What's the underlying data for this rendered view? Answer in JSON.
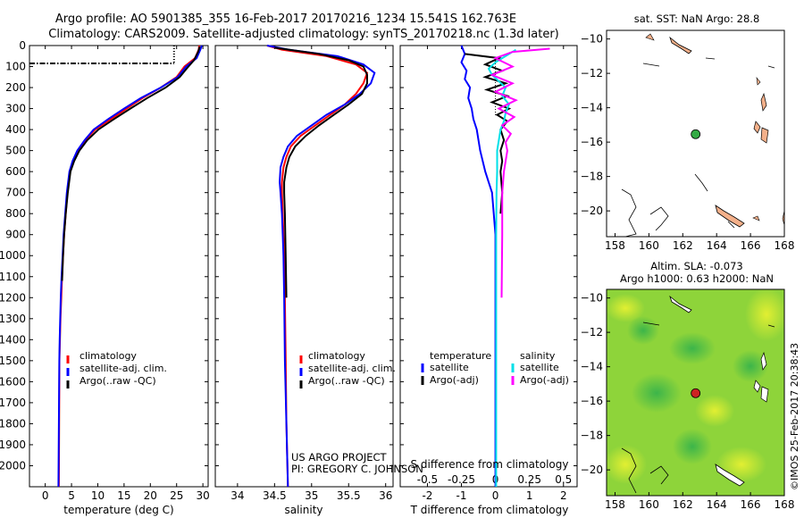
{
  "title_line1": "Argo profile: AO 5901385_355 16-Feb-2017 20170216_1234 15.541S 162.763E",
  "title_line2": "Climatology: CARS2009. Satellite-adjusted climatology: synTS_20170218.nc (1.3d later)",
  "credit_line1": "US ARGO PROJECT",
  "credit_line2": "PI: GREGORY C. JOHNSON",
  "imos_label": "©IMOS 25-Feb-2017 20:38:43",
  "colors": {
    "climatology": "#ff0000",
    "satellite": "#0000ff",
    "argo": "#000000",
    "salinity_satellite": "#00e0e8",
    "salinity_argo": "#ff00ff",
    "land": "#f4b08a",
    "map_sst_bg": "#ffffff"
  },
  "legend_profiles": [
    "climatology",
    "satellite-adj. clim.",
    "Argo(..raw -QC)"
  ],
  "legend_diff": {
    "temperature_header": "temperature",
    "salinity_header": "salinity",
    "items_left": [
      "satellite",
      "Argo(-adj)"
    ],
    "items_right": [
      "satellite",
      "Argo(-adj)"
    ]
  },
  "map_sst": {
    "title": "sat. SST: NaN Argo: 28.8"
  },
  "map_sla": {
    "title_line1": "Altim. SLA: -0.073",
    "title_line2": "Argo h1000: 0.63 h2000: NaN"
  },
  "chart_data": [
    {
      "type": "line",
      "name": "temperature-profile",
      "xlabel": "temperature (deg C)",
      "ylabel": "",
      "xlim": [
        -3,
        31
      ],
      "ylim": [
        2100,
        0
      ],
      "y_reversed": true,
      "xticks": [
        0,
        5,
        10,
        15,
        20,
        25,
        30
      ],
      "yticks": [
        0,
        100,
        200,
        300,
        400,
        500,
        600,
        700,
        800,
        900,
        1000,
        1100,
        1200,
        1300,
        1400,
        1500,
        1600,
        1700,
        1800,
        1900,
        2000
      ],
      "series": [
        {
          "name": "climatology",
          "color": "#ff0000",
          "x": [
            29.3,
            29.2,
            28.5,
            26.5,
            25.0,
            22.0,
            18.5,
            15.5,
            12.5,
            9.5,
            7.6,
            6.2,
            5.3,
            4.7,
            4.2,
            3.9,
            3.6,
            3.4,
            3.2,
            3.05,
            2.9,
            2.8,
            2.7,
            2.65,
            2.6
          ],
          "y": [
            0,
            20,
            60,
            100,
            150,
            200,
            250,
            300,
            350,
            400,
            450,
            500,
            550,
            600,
            700,
            800,
            900,
            1000,
            1100,
            1200,
            1300,
            1400,
            1500,
            1800,
            2100
          ]
        },
        {
          "name": "satellite-adj. clim.",
          "color": "#0000ff",
          "x": [
            29.8,
            29.5,
            28.8,
            26.8,
            25.2,
            22.0,
            18.2,
            15.0,
            12.0,
            9.2,
            7.5,
            6.1,
            5.2,
            4.6,
            4.1,
            3.8,
            3.5,
            3.3,
            3.1,
            2.95,
            2.85,
            2.75,
            2.68,
            2.6,
            2.5
          ],
          "y": [
            0,
            20,
            60,
            100,
            150,
            200,
            250,
            300,
            350,
            400,
            450,
            500,
            550,
            600,
            700,
            800,
            900,
            1000,
            1100,
            1200,
            1300,
            1400,
            1500,
            1800,
            2100
          ]
        },
        {
          "name": "Argo(..raw -QC)",
          "color": "#000000",
          "x": [
            29.4,
            29.1,
            28.3,
            26.9,
            25.6,
            22.9,
            19.4,
            16.2,
            13.1,
            10.1,
            8.0,
            6.5,
            5.5,
            4.8,
            4.3,
            3.9,
            3.6,
            3.4,
            3.2
          ],
          "y": [
            5,
            30,
            70,
            110,
            150,
            200,
            250,
            300,
            350,
            400,
            450,
            500,
            550,
            600,
            700,
            800,
            900,
            1000,
            1120
          ]
        },
        {
          "name": "mixed-layer marker",
          "color": "#000000",
          "style": "dashdot",
          "x": [
            -3,
            24.5
          ],
          "y": [
            85,
            85
          ]
        },
        {
          "name": "surface reference",
          "color": "#000000",
          "style": "dotted",
          "x": [
            24.5,
            24.5
          ],
          "y": [
            0,
            85
          ]
        }
      ]
    },
    {
      "type": "line",
      "name": "salinity-profile",
      "xlabel": "salinity",
      "ylabel": "",
      "xlim": [
        33.7,
        36.1
      ],
      "ylim": [
        2100,
        0
      ],
      "y_reversed": true,
      "xticks": [
        34,
        34.5,
        35,
        35.5,
        36
      ],
      "xtick_labels": [
        "34",
        "34.5",
        "35",
        "35.5",
        "36"
      ],
      "series": [
        {
          "name": "climatology",
          "color": "#ff0000",
          "x": [
            34.4,
            34.6,
            35.2,
            35.6,
            35.75,
            35.7,
            35.6,
            35.45,
            35.25,
            35.05,
            34.85,
            34.72,
            34.66,
            34.62,
            34.6,
            34.6,
            34.61,
            34.62,
            34.63,
            34.64,
            34.65,
            34.66,
            34.68
          ],
          "y": [
            0,
            20,
            50,
            90,
            130,
            180,
            230,
            280,
            330,
            380,
            430,
            480,
            530,
            580,
            650,
            700,
            800,
            900,
            1000,
            1200,
            1500,
            1800,
            2100
          ]
        },
        {
          "name": "satellite-adj. clim.",
          "color": "#0000ff",
          "x": [
            34.4,
            34.7,
            35.35,
            35.7,
            35.85,
            35.8,
            35.65,
            35.45,
            35.2,
            35.0,
            34.8,
            34.68,
            34.62,
            34.58,
            34.57,
            34.58,
            34.6,
            34.61,
            34.62,
            34.63,
            34.64,
            34.66,
            34.68
          ],
          "y": [
            0,
            20,
            50,
            90,
            130,
            180,
            230,
            280,
            330,
            380,
            430,
            480,
            530,
            580,
            650,
            700,
            800,
            900,
            1000,
            1200,
            1500,
            1800,
            2100
          ]
        },
        {
          "name": "Argo(..raw -QC)",
          "color": "#000000",
          "x": [
            34.5,
            35.1,
            35.5,
            35.7,
            35.75,
            35.75,
            35.68,
            35.5,
            35.3,
            35.1,
            34.92,
            34.78,
            34.7,
            34.66,
            34.63,
            34.63,
            34.64,
            34.65,
            34.66
          ],
          "y": [
            10,
            40,
            70,
            100,
            140,
            180,
            230,
            280,
            330,
            380,
            430,
            480,
            530,
            580,
            650,
            700,
            800,
            1000,
            1200
          ]
        }
      ]
    },
    {
      "type": "line",
      "name": "difference-from-climatology",
      "xlabel": "T difference from climatology",
      "xlabel_top": "S difference from climatology",
      "xlim": [
        -2.8,
        2.4
      ],
      "ylim": [
        2100,
        0
      ],
      "y_reversed": true,
      "xticks": [
        -2,
        -1,
        0,
        1,
        2
      ],
      "xticks_salinity": [
        -0.5,
        -0.25,
        0,
        0.25,
        0.5
      ],
      "series": [
        {
          "name": "temperature satellite",
          "color": "#0000ff",
          "x": [
            -1.0,
            -0.9,
            -1.0,
            -0.85,
            -0.9,
            -0.75,
            -0.8,
            -0.7,
            -0.65,
            -0.55,
            -0.45,
            -0.3,
            -0.2,
            -0.1,
            -0.05,
            0.0,
            0.0,
            0.0
          ],
          "y": [
            0,
            40,
            80,
            120,
            160,
            200,
            250,
            300,
            350,
            400,
            500,
            600,
            650,
            700,
            800,
            900,
            1200,
            2100
          ]
        },
        {
          "name": "temperature Argo(-adj)",
          "color": "#000000",
          "x": [
            -0.9,
            0.1,
            -0.3,
            0.2,
            -0.3,
            0.3,
            -0.25,
            0.35,
            -0.1,
            0.4,
            0.05,
            0.35,
            0.15,
            0.25,
            0.15,
            0.2,
            0.15,
            0.2,
            0.15
          ],
          "y": [
            40,
            60,
            90,
            120,
            150,
            180,
            210,
            240,
            270,
            300,
            330,
            360,
            400,
            450,
            500,
            550,
            600,
            700,
            800
          ]
        },
        {
          "name": "salinity satellite",
          "color": "#00e0e8",
          "x": [
            0.6,
            0.3,
            0.0,
            -0.2,
            -0.1,
            0.1,
            0.3,
            0.2,
            0.4,
            0.3,
            0.25,
            0.15,
            0.1,
            0.05,
            0.05,
            0.03,
            0.02,
            0.02,
            0.02
          ],
          "y": [
            20,
            50,
            80,
            110,
            140,
            170,
            200,
            240,
            280,
            320,
            360,
            400,
            450,
            500,
            600,
            700,
            900,
            1200,
            2100
          ]
        },
        {
          "name": "salinity Argo(-adj)",
          "color": "#ff00ff",
          "x": [
            1.6,
            0.5,
            0.0,
            0.5,
            -0.1,
            0.5,
            0.0,
            0.6,
            0.1,
            0.55,
            0.2,
            0.45,
            0.3,
            0.35,
            0.3,
            0.25,
            0.2,
            0.2,
            0.18
          ],
          "y": [
            15,
            30,
            60,
            100,
            140,
            180,
            220,
            260,
            300,
            340,
            380,
            420,
            460,
            500,
            550,
            600,
            700,
            900,
            1200
          ]
        }
      ]
    },
    {
      "type": "map",
      "name": "sst-map",
      "title": "sat. SST: NaN Argo: 28.8",
      "xlim": [
        157.5,
        168
      ],
      "ylim": [
        -21.5,
        -9.5
      ],
      "xticks": [
        158,
        160,
        162,
        164,
        166,
        168
      ],
      "yticks": [
        -10,
        -12,
        -14,
        -16,
        -18,
        -20
      ],
      "point": {
        "lon": 162.76,
        "lat": -15.54,
        "color": "#33aa44"
      }
    },
    {
      "type": "map",
      "name": "sla-map",
      "xlim": [
        157.5,
        168
      ],
      "ylim": [
        -21.5,
        -9.5
      ],
      "xticks": [
        158,
        160,
        162,
        164,
        166,
        168
      ],
      "yticks": [
        -10,
        -12,
        -14,
        -16,
        -18,
        -20
      ],
      "point": {
        "lon": 162.76,
        "lat": -15.54,
        "color": "#cc2222"
      }
    }
  ]
}
